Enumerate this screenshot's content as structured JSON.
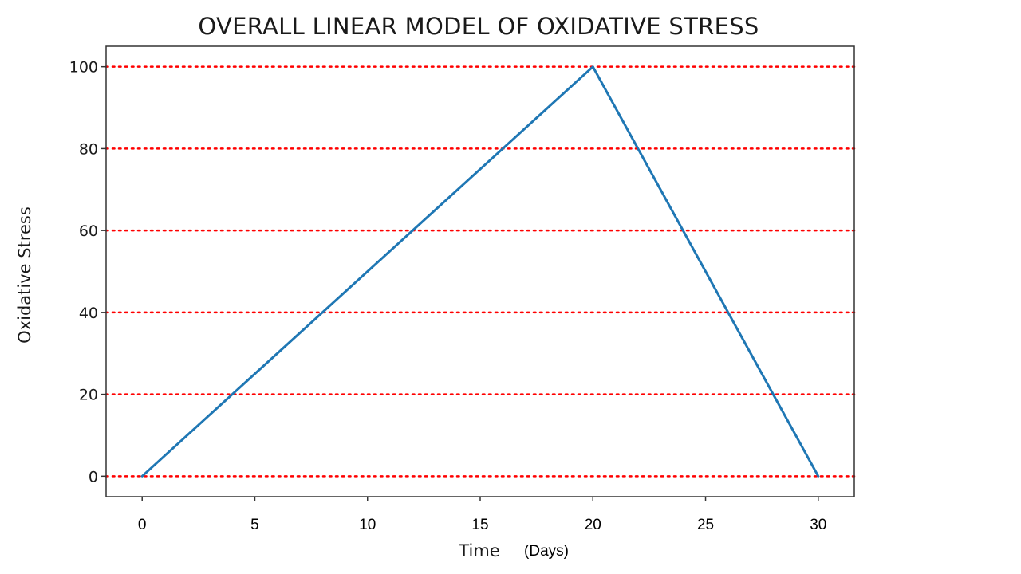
{
  "chart_data": {
    "type": "line",
    "title": "OVERALL LINEAR MODEL OF OXIDATIVE STRESS",
    "xlabel": "Time",
    "xlabel_unit": "(Days)",
    "ylabel": "Oxidative Stress",
    "xlim": [
      -1.6,
      31.6
    ],
    "ylim": [
      -5,
      105
    ],
    "x_ticks": [
      0,
      5,
      10,
      15,
      20,
      25,
      30
    ],
    "y_ticks": [
      0,
      20,
      40,
      60,
      80,
      100
    ],
    "grid": {
      "axis": "y",
      "style": "dotted",
      "color": "#ff0000"
    },
    "series": [
      {
        "x": [
          0,
          20,
          30
        ],
        "y": [
          0,
          100,
          0
        ],
        "color": "#1f77b4"
      }
    ]
  }
}
